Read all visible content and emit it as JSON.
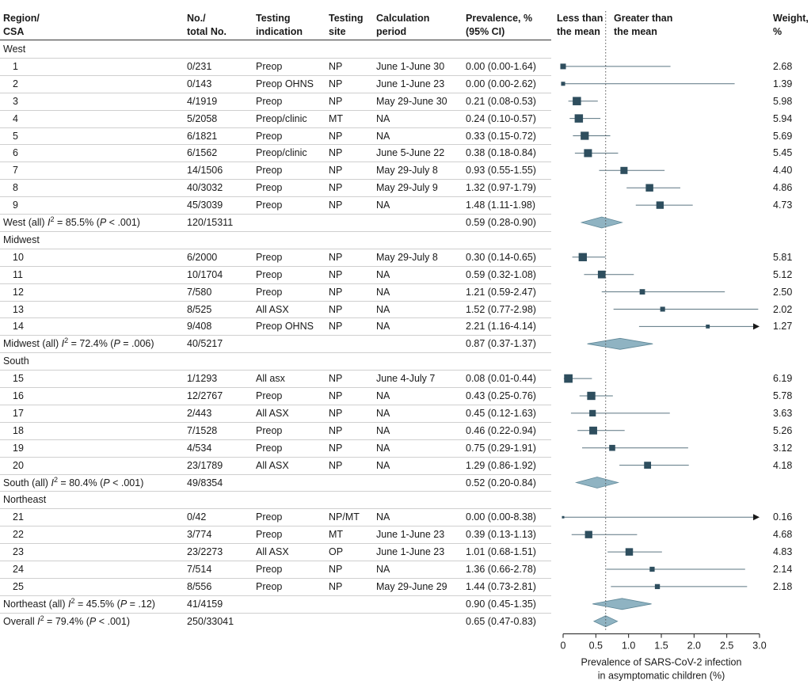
{
  "headers": {
    "region": [
      "Region/",
      "CSA"
    ],
    "no_total": [
      "No./",
      "total No."
    ],
    "indication": [
      "Testing",
      "indication"
    ],
    "site": [
      "Testing",
      "site"
    ],
    "period": [
      "Calculation",
      "period"
    ],
    "prevalence": [
      "Prevalence, %",
      "(95% CI)"
    ],
    "less": [
      "Less than",
      "the mean"
    ],
    "greater": [
      "Greater than",
      "the mean"
    ],
    "weight": [
      "Weight,",
      "%"
    ]
  },
  "x_axis_label": [
    "Prevalence of SARS-CoV-2 infection",
    "in asymptomatic children (%)"
  ],
  "chart_data": {
    "type": "forest",
    "title": "",
    "xlabel": "Prevalence of SARS-CoV-2 infection in asymptomatic children (%)",
    "xlim": [
      0,
      3.0
    ],
    "x_ticks": [
      "0",
      "0.5",
      "1.0",
      "1.5",
      "2.0",
      "2.5",
      "3.0"
    ],
    "x_tick_values": [
      0,
      0.5,
      1.0,
      1.5,
      2.0,
      2.5,
      3.0
    ],
    "reference_line": 0.65,
    "marker_color": "#2e4e5e",
    "diamond_color": "#8fb3c2",
    "sections": [
      {
        "name": "West",
        "studies": [
          {
            "id": "1",
            "n": "0/231",
            "indication": "Preop",
            "site": "NP",
            "period": "June 1-June 30",
            "ci_text": "0.00 (0.00-1.64)",
            "est": 0.0,
            "lo": 0.0,
            "hi": 1.64,
            "weight_text": "2.68",
            "weight": 2.68
          },
          {
            "id": "2",
            "n": "0/143",
            "indication": "Preop OHNS",
            "site": "NP",
            "period": "June 1-June 23",
            "ci_text": "0.00 (0.00-2.62)",
            "est": 0.0,
            "lo": 0.0,
            "hi": 2.62,
            "weight_text": "1.39",
            "weight": 1.39
          },
          {
            "id": "3",
            "n": "4/1919",
            "indication": "Preop",
            "site": "NP",
            "period": "May 29-June 30",
            "ci_text": "0.21 (0.08-0.53)",
            "est": 0.21,
            "lo": 0.08,
            "hi": 0.53,
            "weight_text": "5.98",
            "weight": 5.98
          },
          {
            "id": "4",
            "n": "5/2058",
            "indication": "Preop/clinic",
            "site": "MT",
            "period": "NA",
            "ci_text": "0.24 (0.10-0.57)",
            "est": 0.24,
            "lo": 0.1,
            "hi": 0.57,
            "weight_text": "5.94",
            "weight": 5.94
          },
          {
            "id": "5",
            "n": "6/1821",
            "indication": "Preop",
            "site": "NP",
            "period": "NA",
            "ci_text": "0.33 (0.15-0.72)",
            "est": 0.33,
            "lo": 0.15,
            "hi": 0.72,
            "weight_text": "5.69",
            "weight": 5.69
          },
          {
            "id": "6",
            "n": "6/1562",
            "indication": "Preop/clinic",
            "site": "NP",
            "period": "June 5-June 22",
            "ci_text": "0.38 (0.18-0.84)",
            "est": 0.38,
            "lo": 0.18,
            "hi": 0.84,
            "weight_text": "5.45",
            "weight": 5.45
          },
          {
            "id": "7",
            "n": "14/1506",
            "indication": "Preop",
            "site": "NP",
            "period": "May 29-July 8",
            "ci_text": "0.93 (0.55-1.55)",
            "est": 0.93,
            "lo": 0.55,
            "hi": 1.55,
            "weight_text": "4.40",
            "weight": 4.4
          },
          {
            "id": "8",
            "n": "40/3032",
            "indication": "Preop",
            "site": "NP",
            "period": "May 29-July 9",
            "ci_text": "1.32 (0.97-1.79)",
            "est": 1.32,
            "lo": 0.97,
            "hi": 1.79,
            "weight_text": "4.86",
            "weight": 4.86
          },
          {
            "id": "9",
            "n": "45/3039",
            "indication": "Preop",
            "site": "NP",
            "period": "NA",
            "ci_text": "1.48 (1.11-1.98)",
            "est": 1.48,
            "lo": 1.11,
            "hi": 1.98,
            "weight_text": "4.73",
            "weight": 4.73
          }
        ],
        "summary": {
          "label_pre": "West (all)",
          "i2_label": "I",
          "i2_value": " = 85.5% (",
          "p_label": "P",
          "p_value": " < .001)",
          "n": "120/15311",
          "ci_text": "0.59 (0.28-0.90)",
          "est": 0.59,
          "lo": 0.28,
          "hi": 0.9
        }
      },
      {
        "name": "Midwest",
        "studies": [
          {
            "id": "10",
            "n": "6/2000",
            "indication": "Preop",
            "site": "NP",
            "period": "May 29-July 8",
            "ci_text": "0.30 (0.14-0.65)",
            "est": 0.3,
            "lo": 0.14,
            "hi": 0.65,
            "weight_text": "5.81",
            "weight": 5.81
          },
          {
            "id": "11",
            "n": "10/1704",
            "indication": "Preop",
            "site": "NP",
            "period": "NA",
            "ci_text": "0.59 (0.32-1.08)",
            "est": 0.59,
            "lo": 0.32,
            "hi": 1.08,
            "weight_text": "5.12",
            "weight": 5.12
          },
          {
            "id": "12",
            "n": "7/580",
            "indication": "Preop",
            "site": "NP",
            "period": "NA",
            "ci_text": "1.21 (0.59-2.47)",
            "est": 1.21,
            "lo": 0.59,
            "hi": 2.47,
            "weight_text": "2.50",
            "weight": 2.5
          },
          {
            "id": "13",
            "n": "8/525",
            "indication": "All ASX",
            "site": "NP",
            "period": "NA",
            "ci_text": "1.52 (0.77-2.98)",
            "est": 1.52,
            "lo": 0.77,
            "hi": 2.98,
            "weight_text": "2.02",
            "weight": 2.02
          },
          {
            "id": "14",
            "n": "9/408",
            "indication": "Preop OHNS",
            "site": "NP",
            "period": "NA",
            "ci_text": "2.21 (1.16-4.14)",
            "est": 2.21,
            "lo": 1.16,
            "hi": 4.14,
            "weight_text": "1.27",
            "weight": 1.27
          }
        ],
        "summary": {
          "label_pre": "Midwest (all)",
          "i2_label": "I",
          "i2_value": " = 72.4% (",
          "p_label": "P",
          "p_value": " = .006)",
          "n": "40/5217",
          "ci_text": "0.87 (0.37-1.37)",
          "est": 0.87,
          "lo": 0.37,
          "hi": 1.37
        }
      },
      {
        "name": "South",
        "studies": [
          {
            "id": "15",
            "n": "1/1293",
            "indication": "All asx",
            "site": "NP",
            "period": "June 4-July 7",
            "ci_text": "0.08 (0.01-0.44)",
            "est": 0.08,
            "lo": 0.01,
            "hi": 0.44,
            "weight_text": "6.19",
            "weight": 6.19
          },
          {
            "id": "16",
            "n": "12/2767",
            "indication": "Preop",
            "site": "NP",
            "period": "NA",
            "ci_text": "0.43 (0.25-0.76)",
            "est": 0.43,
            "lo": 0.25,
            "hi": 0.76,
            "weight_text": "5.78",
            "weight": 5.78
          },
          {
            "id": "17",
            "n": "2/443",
            "indication": "All ASX",
            "site": "NP",
            "period": "NA",
            "ci_text": "0.45 (0.12-1.63)",
            "est": 0.45,
            "lo": 0.12,
            "hi": 1.63,
            "weight_text": "3.63",
            "weight": 3.63
          },
          {
            "id": "18",
            "n": "7/1528",
            "indication": "Preop",
            "site": "NP",
            "period": "NA",
            "ci_text": "0.46 (0.22-0.94)",
            "est": 0.46,
            "lo": 0.22,
            "hi": 0.94,
            "weight_text": "5.26",
            "weight": 5.26
          },
          {
            "id": "19",
            "n": "4/534",
            "indication": "Preop",
            "site": "NP",
            "period": "NA",
            "ci_text": "0.75 (0.29-1.91)",
            "est": 0.75,
            "lo": 0.29,
            "hi": 1.91,
            "weight_text": "3.12",
            "weight": 3.12
          },
          {
            "id": "20",
            "n": "23/1789",
            "indication": "All ASX",
            "site": "NP",
            "period": "NA",
            "ci_text": "1.29 (0.86-1.92)",
            "est": 1.29,
            "lo": 0.86,
            "hi": 1.92,
            "weight_text": "4.18",
            "weight": 4.18
          }
        ],
        "summary": {
          "label_pre": "South (all)",
          "i2_label": "I",
          "i2_value": " = 80.4% (",
          "p_label": "P",
          "p_value": " < .001)",
          "n": "49/8354",
          "ci_text": "0.52 (0.20-0.84)",
          "est": 0.52,
          "lo": 0.2,
          "hi": 0.84
        }
      },
      {
        "name": "Northeast",
        "studies": [
          {
            "id": "21",
            "n": "0/42",
            "indication": "Preop",
            "site": "NP/MT",
            "period": "NA",
            "ci_text": "0.00 (0.00-8.38)",
            "est": 0.0,
            "lo": 0.0,
            "hi": 8.38,
            "weight_text": "0.16",
            "weight": 0.16
          },
          {
            "id": "22",
            "n": "3/774",
            "indication": "Preop",
            "site": "MT",
            "period": "June 1-June 23",
            "ci_text": "0.39 (0.13-1.13)",
            "est": 0.39,
            "lo": 0.13,
            "hi": 1.13,
            "weight_text": "4.68",
            "weight": 4.68
          },
          {
            "id": "23",
            "n": "23/2273",
            "indication": "All ASX",
            "site": "OP",
            "period": "June 1-June 23",
            "ci_text": "1.01 (0.68-1.51)",
            "est": 1.01,
            "lo": 0.68,
            "hi": 1.51,
            "weight_text": "4.83",
            "weight": 4.83
          },
          {
            "id": "24",
            "n": "7/514",
            "indication": "Preop",
            "site": "NP",
            "period": "NA",
            "ci_text": "1.36 (0.66-2.78)",
            "est": 1.36,
            "lo": 0.66,
            "hi": 2.78,
            "weight_text": "2.14",
            "weight": 2.14
          },
          {
            "id": "25",
            "n": "8/556",
            "indication": "Preop",
            "site": "NP",
            "period": "May 29-June 29",
            "ci_text": "1.44 (0.73-2.81)",
            "est": 1.44,
            "lo": 0.73,
            "hi": 2.81,
            "weight_text": "2.18",
            "weight": 2.18
          }
        ],
        "summary": {
          "label_pre": "Northeast (all)",
          "i2_label": "I",
          "i2_value": " = 45.5% (",
          "p_label": "P",
          "p_value": " = .12)",
          "n": "41/4159",
          "ci_text": "0.90 (0.45-1.35)",
          "est": 0.9,
          "lo": 0.45,
          "hi": 1.35
        }
      }
    ],
    "overall": {
      "label_pre": "Overall",
      "i2_label": "I",
      "i2_value": " = 79.4% (",
      "p_label": "P",
      "p_value": " < .001)",
      "n": "250/33041",
      "ci_text": "0.65 (0.47-0.83)",
      "est": 0.65,
      "lo": 0.47,
      "hi": 0.83
    }
  }
}
